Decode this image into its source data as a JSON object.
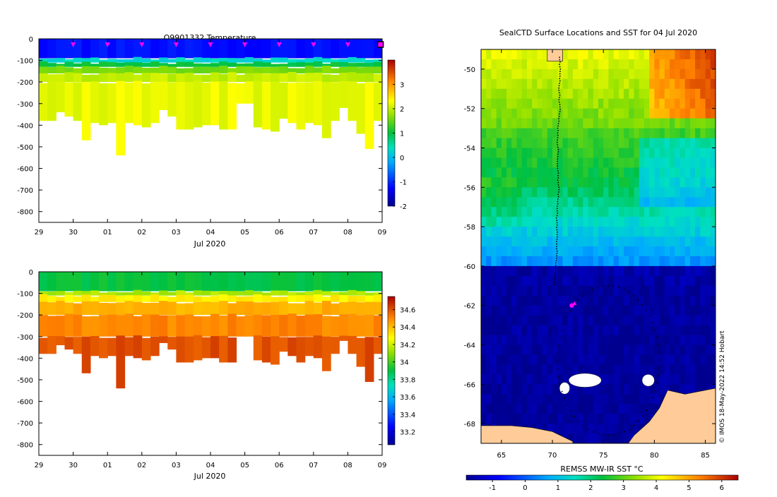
{
  "chart_data": [
    {
      "type": "heatmap",
      "title": "Q9901332  Temperature",
      "xlabel": "Jul 2020",
      "ylabel": "",
      "x_ticks": [
        "29",
        "30",
        "01",
        "02",
        "03",
        "04",
        "05",
        "06",
        "07",
        "08",
        "09"
      ],
      "ylim": [
        -850,
        0
      ],
      "y_ticks": [
        0,
        -100,
        -200,
        -300,
        -400,
        -500,
        -600,
        -700,
        -800
      ],
      "colorbar": {
        "min": -2,
        "max": 4,
        "ticks": [
          3,
          2,
          1,
          0,
          -1,
          -2
        ]
      },
      "profile_count": 40,
      "profile_max_depth": [
        -380,
        -380,
        -340,
        -360,
        -380,
        -470,
        -390,
        -400,
        -390,
        -540,
        -390,
        -400,
        -410,
        -390,
        -330,
        -360,
        -420,
        -420,
        -410,
        -400,
        -400,
        -420,
        -420,
        -300,
        -300,
        -410,
        -420,
        -430,
        -370,
        -390,
        -420,
        -390,
        -400,
        -460,
        -380,
        -320,
        -380,
        -440,
        -510,
        -380
      ],
      "layers": [
        {
          "top": 0,
          "bottom": -90,
          "value": -1.2
        },
        {
          "top": -90,
          "bottom": -110,
          "value": 0.3
        },
        {
          "top": -110,
          "bottom": -130,
          "value": 1.0
        },
        {
          "top": -130,
          "bottom": -160,
          "value": 1.6
        },
        {
          "top": -160,
          "bottom": -200,
          "value": 2.0
        },
        {
          "top": -200,
          "bottom": -900,
          "value": 2.2
        }
      ],
      "markers_x": [
        1,
        2,
        3,
        4,
        5,
        6,
        7,
        8,
        9,
        9.95
      ]
    },
    {
      "type": "heatmap",
      "title": "",
      "xlabel": "Jul 2020",
      "ylabel": "",
      "x_ticks": [
        "29",
        "30",
        "01",
        "02",
        "03",
        "04",
        "05",
        "06",
        "07",
        "08",
        "09"
      ],
      "ylim": [
        -850,
        0
      ],
      "y_ticks": [
        0,
        -100,
        -200,
        -300,
        -400,
        -500,
        -600,
        -700,
        -800
      ],
      "colorbar": {
        "min": 33.05,
        "max": 34.75,
        "ticks": [
          34.6,
          34.4,
          34.2,
          34,
          33.8,
          33.6,
          33.4,
          33.2
        ]
      },
      "layers": [
        {
          "top": 0,
          "bottom": -90,
          "value": 33.9
        },
        {
          "top": -90,
          "bottom": -110,
          "value": 34.15
        },
        {
          "top": -110,
          "bottom": -140,
          "value": 34.3
        },
        {
          "top": -140,
          "bottom": -200,
          "value": 34.42
        },
        {
          "top": -200,
          "bottom": -300,
          "value": 34.5
        },
        {
          "top": -300,
          "bottom": -900,
          "value": 34.6
        }
      ]
    },
    {
      "type": "heatmap",
      "title": "SealCTD Surface Locations and SST for 04 Jul 2020",
      "xlabel": "",
      "ylabel": "",
      "xlim": [
        63,
        86
      ],
      "ylim": [
        -69,
        -49
      ],
      "x_ticks": [
        65,
        70,
        75,
        80,
        85
      ],
      "y_ticks": [
        -50,
        -52,
        -54,
        -56,
        -58,
        -60,
        -62,
        -64,
        -66,
        -68
      ],
      "colorbar": {
        "label": "REMSS MW-IR SST °C",
        "min": -1.8,
        "max": 6.5,
        "ticks": [
          -1,
          0,
          1,
          2,
          3,
          4,
          5,
          6
        ]
      },
      "current_location": {
        "lon": 71.9,
        "lat": -62.0
      },
      "credit": "© IMOS 18-May-2022 14:52 Hobart"
    }
  ]
}
